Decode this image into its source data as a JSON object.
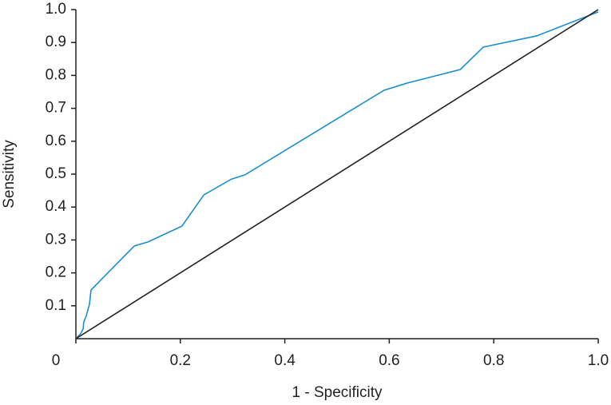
{
  "chart_data": {
    "type": "line",
    "x_label": "1 - Specificity",
    "y_label": "Sensitivity",
    "xlim": [
      0,
      1
    ],
    "ylim": [
      0,
      1
    ],
    "xticks": [
      0,
      0.2,
      0.4,
      0.6,
      0.8,
      {
        "value": 1,
        "label": "1.0"
      }
    ],
    "yticks": [
      0.1,
      0.2,
      0.3,
      0.4,
      0.5,
      0.6,
      0.7,
      0.8,
      0.9,
      {
        "value": 1,
        "label": "1.0"
      }
    ],
    "grid": false,
    "series": [
      {
        "color": "#1a8fcd",
        "x": [
          0,
          0.009,
          0.014,
          0.015,
          0.02,
          0.026,
          0.029,
          0.112,
          0.138,
          0.203,
          0.245,
          0.298,
          0.324,
          0.59,
          0.635,
          0.736,
          0.78,
          0.882,
          1.0
        ],
        "values": [
          0,
          0.015,
          0.03,
          0.05,
          0.07,
          0.105,
          0.148,
          0.282,
          0.294,
          0.342,
          0.437,
          0.485,
          0.498,
          0.755,
          0.777,
          0.818,
          0.886,
          0.92,
          0.993
        ]
      },
      {
        "color": "#231f20",
        "x": [
          0,
          1
        ],
        "values": [
          0,
          1
        ]
      }
    ]
  }
}
